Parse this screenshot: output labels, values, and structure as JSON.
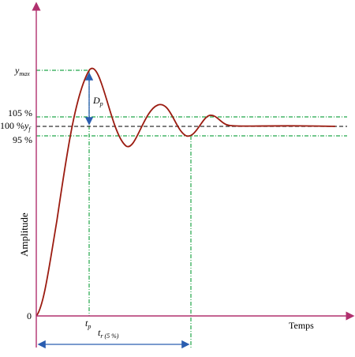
{
  "labels": {
    "ymax": "y",
    "ymax_sub": "max",
    "pct_105": "105 %",
    "pct_100": "100 %",
    "yf": "y",
    "yf_sub": "f",
    "pct_95": "95 %",
    "zero": "0",
    "Dp": "D",
    "Dp_sub": "p",
    "tp": "t",
    "tp_sub": "p",
    "tr": "t",
    "tr_sub": "r (5 %)",
    "xaxis": "Temps",
    "yaxis": "Amplitude"
  },
  "colors": {
    "axis": "#b0306e",
    "response": "#9b1b10",
    "guide": "#22a64a",
    "final": "#333333",
    "arrow": "#2a5db0"
  }
}
